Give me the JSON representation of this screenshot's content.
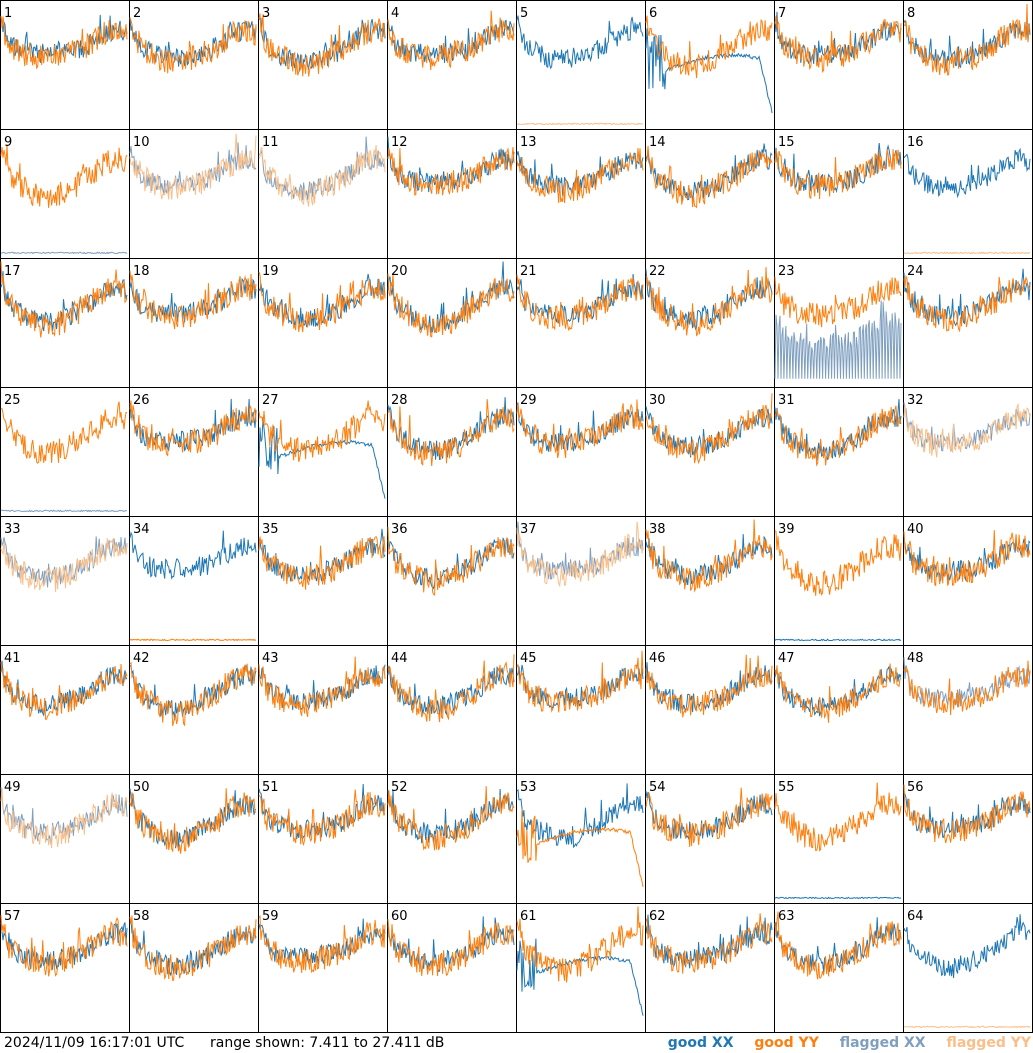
{
  "chart_data": {
    "type": "line",
    "timestamp": "2024/11/09 16:17:01 UTC",
    "range_label": "range shown: 7.411 to 27.411 dB",
    "ylim": [
      7.411,
      27.411
    ],
    "panels": 64,
    "colors": {
      "good_xx": "#1f77b4",
      "good_yy": "#ff7f0e",
      "flagged_xx": "#7f9fbf",
      "flagged_yy": "#f9bf8a"
    },
    "legend": {
      "good_xx": "good XX",
      "good_yy": "good YY",
      "flagged_xx": "flagged XX",
      "flagged_yy": "flagged YY"
    },
    "tile_labels": [
      "1",
      "2",
      "3",
      "4",
      "5",
      "6",
      "7",
      "8",
      "9",
      "10",
      "11",
      "12",
      "13",
      "14",
      "15",
      "16",
      "17",
      "18",
      "19",
      "20",
      "21",
      "22",
      "23",
      "24",
      "25",
      "26",
      "27",
      "28",
      "29",
      "30",
      "31",
      "32",
      "33",
      "34",
      "35",
      "36",
      "37",
      "38",
      "39",
      "40",
      "41",
      "42",
      "43",
      "44",
      "45",
      "46",
      "47",
      "48",
      "49",
      "50",
      "51",
      "52",
      "53",
      "54",
      "55",
      "56",
      "57",
      "58",
      "59",
      "60",
      "61",
      "62",
      "63",
      "64"
    ],
    "tiles": [
      {
        "xx": "good",
        "yy": "good",
        "mode": "mixed"
      },
      {
        "xx": "good",
        "yy": "good",
        "mode": "normal"
      },
      {
        "xx": "good",
        "yy": "good",
        "mode": "normal"
      },
      {
        "xx": "good",
        "yy": "good",
        "mode": "normal"
      },
      {
        "xx": "good",
        "yy": "flagged",
        "mode": "yy_spikes"
      },
      {
        "xx": "good",
        "yy": "good",
        "mode": "xx_drop"
      },
      {
        "xx": "good",
        "yy": "good",
        "mode": "normal"
      },
      {
        "xx": "good",
        "yy": "good",
        "mode": "normal"
      },
      {
        "xx": "flagged",
        "yy": "good",
        "mode": "xx_spikes"
      },
      {
        "xx": "flagged",
        "yy": "flagged",
        "mode": "normal"
      },
      {
        "xx": "flagged",
        "yy": "flagged",
        "mode": "normal"
      },
      {
        "xx": "good",
        "yy": "good",
        "mode": "normal"
      },
      {
        "xx": "good",
        "yy": "good",
        "mode": "normal"
      },
      {
        "xx": "good",
        "yy": "good",
        "mode": "normal"
      },
      {
        "xx": "good",
        "yy": "good",
        "mode": "normal"
      },
      {
        "xx": "good",
        "yy": "flagged",
        "mode": "yy_spikes"
      },
      {
        "xx": "good",
        "yy": "good",
        "mode": "normal"
      },
      {
        "xx": "good",
        "yy": "good",
        "mode": "normal"
      },
      {
        "xx": "good",
        "yy": "good",
        "mode": "normal"
      },
      {
        "xx": "good",
        "yy": "good",
        "mode": "normal"
      },
      {
        "xx": "good",
        "yy": "good",
        "mode": "normal"
      },
      {
        "xx": "good",
        "yy": "good",
        "mode": "normal"
      },
      {
        "xx": "flagged",
        "yy": "good",
        "mode": "xx_noisy"
      },
      {
        "xx": "good",
        "yy": "good",
        "mode": "normal"
      },
      {
        "xx": "flagged",
        "yy": "good",
        "mode": "xx_spikes"
      },
      {
        "xx": "good",
        "yy": "good",
        "mode": "normal"
      },
      {
        "xx": "good",
        "yy": "good",
        "mode": "xx_drop"
      },
      {
        "xx": "good",
        "yy": "good",
        "mode": "normal"
      },
      {
        "xx": "good",
        "yy": "good",
        "mode": "normal"
      },
      {
        "xx": "good",
        "yy": "good",
        "mode": "normal"
      },
      {
        "xx": "good",
        "yy": "good",
        "mode": "normal"
      },
      {
        "xx": "flagged",
        "yy": "flagged",
        "mode": "normal"
      },
      {
        "xx": "flagged",
        "yy": "flagged",
        "mode": "normal"
      },
      {
        "xx": "good",
        "yy": "good",
        "mode": "yy_spikes"
      },
      {
        "xx": "good",
        "yy": "good",
        "mode": "normal"
      },
      {
        "xx": "good",
        "yy": "good",
        "mode": "normal"
      },
      {
        "xx": "flagged",
        "yy": "flagged",
        "mode": "normal"
      },
      {
        "xx": "good",
        "yy": "good",
        "mode": "normal"
      },
      {
        "xx": "good",
        "yy": "good",
        "mode": "xx_spikes"
      },
      {
        "xx": "good",
        "yy": "good",
        "mode": "normal"
      },
      {
        "xx": "good",
        "yy": "good",
        "mode": "normal"
      },
      {
        "xx": "good",
        "yy": "good",
        "mode": "normal"
      },
      {
        "xx": "good",
        "yy": "good",
        "mode": "normal"
      },
      {
        "xx": "good",
        "yy": "good",
        "mode": "normal"
      },
      {
        "xx": "good",
        "yy": "good",
        "mode": "normal"
      },
      {
        "xx": "good",
        "yy": "good",
        "mode": "normal"
      },
      {
        "xx": "good",
        "yy": "good",
        "mode": "normal"
      },
      {
        "xx": "flagged",
        "yy": "good",
        "mode": "normal"
      },
      {
        "xx": "flagged",
        "yy": "flagged",
        "mode": "normal"
      },
      {
        "xx": "good",
        "yy": "good",
        "mode": "normal"
      },
      {
        "xx": "good",
        "yy": "good",
        "mode": "normal"
      },
      {
        "xx": "good",
        "yy": "good",
        "mode": "normal"
      },
      {
        "xx": "good",
        "yy": "good",
        "mode": "yy_drop"
      },
      {
        "xx": "good",
        "yy": "good",
        "mode": "normal"
      },
      {
        "xx": "good",
        "yy": "good",
        "mode": "xx_spikes"
      },
      {
        "xx": "good",
        "yy": "good",
        "mode": "normal"
      },
      {
        "xx": "good",
        "yy": "good",
        "mode": "normal"
      },
      {
        "xx": "good",
        "yy": "good",
        "mode": "normal"
      },
      {
        "xx": "good",
        "yy": "good",
        "mode": "normal"
      },
      {
        "xx": "good",
        "yy": "good",
        "mode": "normal"
      },
      {
        "xx": "good",
        "yy": "good",
        "mode": "xx_drop"
      },
      {
        "xx": "good",
        "yy": "good",
        "mode": "normal"
      },
      {
        "xx": "good",
        "yy": "good",
        "mode": "normal"
      },
      {
        "xx": "good",
        "yy": "flagged",
        "mode": "yy_spikes"
      }
    ]
  }
}
